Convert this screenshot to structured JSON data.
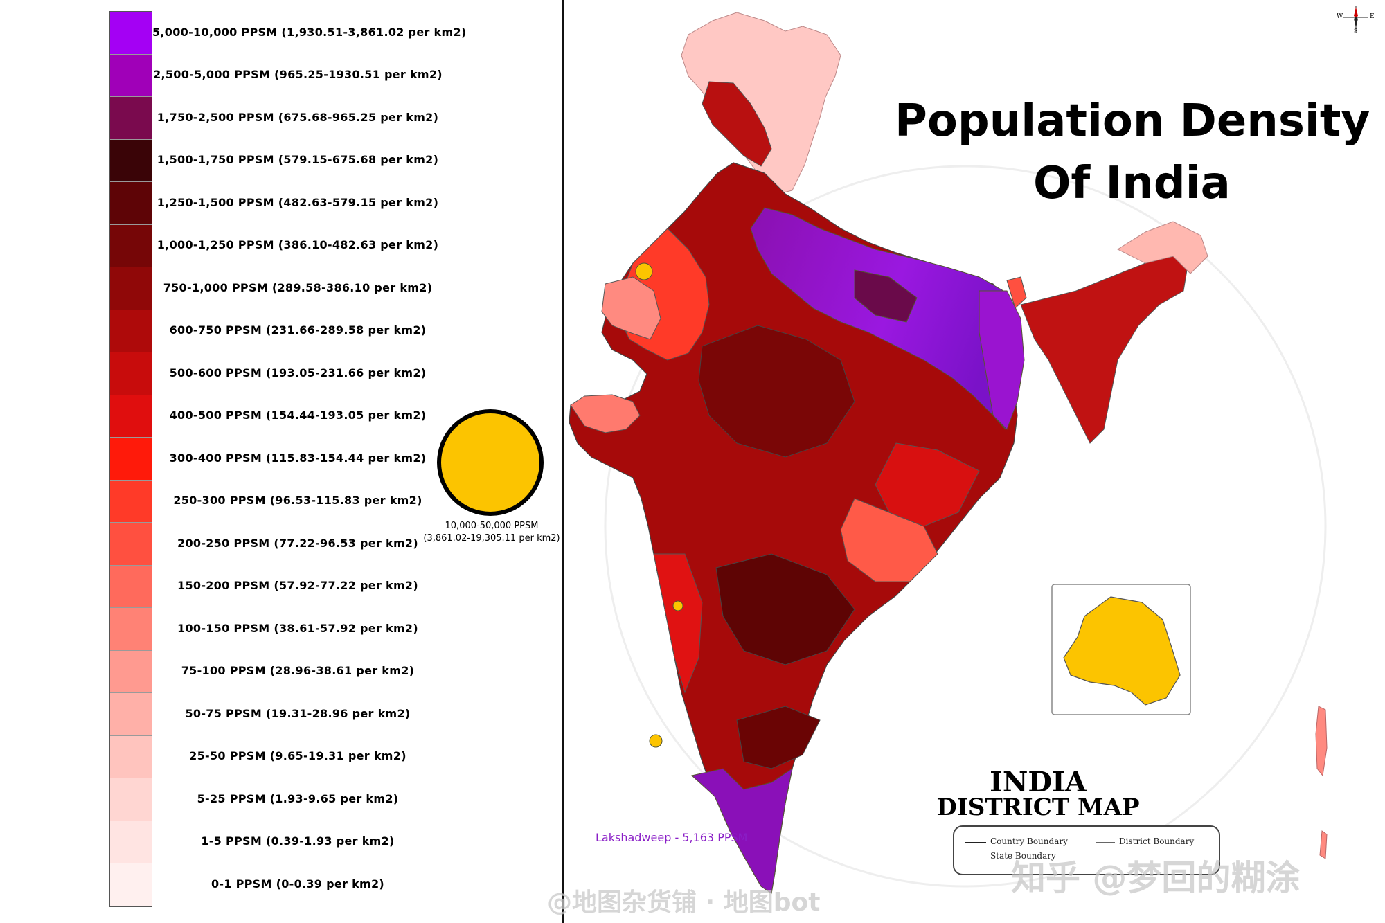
{
  "map": {
    "title_line1": "Population Density",
    "title_line2": "Of India",
    "subtitle_line1": "INDIA",
    "subtitle_line2": "DISTRICT MAP",
    "lakshadweep_label": "Lakshadweep - 5,163 PPSM",
    "boundary_key": {
      "country": "Country Boundary",
      "district": "District Boundary",
      "state": "State Boundary"
    },
    "compass": {
      "west": "W",
      "east": "E",
      "south": "S"
    }
  },
  "legend": {
    "items": [
      {
        "label": "5,000-10,000 PPSM (1,930.51-3,861.02 per km2)",
        "color": "#a400f4"
      },
      {
        "label": "2,500-5,000 PPSM (965.25-1930.51 per km2)",
        "color": "#a000b8"
      },
      {
        "label": "1,750-2,500 PPSM (675.68-965.25 per km2)",
        "color": "#7a0a4e"
      },
      {
        "label": "1,500-1,750 PPSM (579.15-675.68 per km2)",
        "color": "#3a0407"
      },
      {
        "label": "1,250-1,500 PPSM (482.63-579.15 per km2)",
        "color": "#5e0406"
      },
      {
        "label": "1,000-1,250 PPSM (386.10-482.63 per km2)",
        "color": "#760607"
      },
      {
        "label": "750-1,000 PPSM (289.58-386.10 per km2)",
        "color": "#900808"
      },
      {
        "label": "600-750 PPSM (231.66-289.58 per km2)",
        "color": "#ae0a0a"
      },
      {
        "label": "500-600 PPSM (193.05-231.66 per km2)",
        "color": "#c80c0c"
      },
      {
        "label": "400-500 PPSM (154.44-193.05 per km2)",
        "color": "#e00e0e"
      },
      {
        "label": "300-400 PPSM (115.83-154.44 per km2)",
        "color": "#ff1a0a"
      },
      {
        "label": "250-300 PPSM (96.53-115.83 per km2)",
        "color": "#ff3a28"
      },
      {
        "label": "200-250 PPSM (77.22-96.53 per km2)",
        "color": "#ff5040"
      },
      {
        "label": "150-200 PPSM (57.92-77.22 per km2)",
        "color": "#ff6a5c"
      },
      {
        "label": "100-150 PPSM (38.61-57.92 per km2)",
        "color": "#ff8275"
      },
      {
        "label": "75-100 PPSM (28.96-38.61 per km2)",
        "color": "#ff9a90"
      },
      {
        "label": "50-75 PPSM (19.31-28.96 per km2)",
        "color": "#ffb0a8"
      },
      {
        "label": "25-50 PPSM (9.65-19.31 per km2)",
        "color": "#ffc4be"
      },
      {
        "label": "5-25 PPSM (1.93-9.65 per km2)",
        "color": "#ffd6d2"
      },
      {
        "label": "1-5 PPSM (0.39-1.93 per km2)",
        "color": "#ffe4e2"
      },
      {
        "label": "0-1 PPSM (0-0.39 per km2)",
        "color": "#fff0ef"
      }
    ],
    "highlight": {
      "color": "#fcc400",
      "label_line1": "10,000-50,000 PPSM",
      "label_line2": "(3,861.02-19,305.11 per km2)"
    }
  },
  "watermarks": {
    "zhihu": "知乎 @梦回的糊涂",
    "weibo": "@地图杂货铺 · 地图bot"
  }
}
